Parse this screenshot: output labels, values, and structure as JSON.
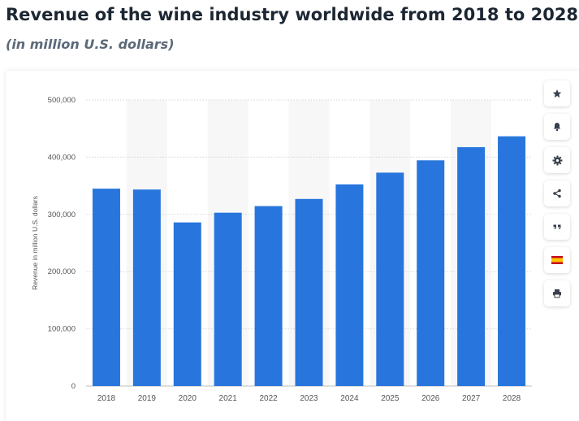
{
  "header": {
    "title": "Revenue of the wine industry worldwide from 2018 to 2028",
    "subtitle": "(in million U.S. dollars)"
  },
  "colors": {
    "bar": "#2876dd",
    "band": "#f7f7f7",
    "grid": "#d6d6d6",
    "axis_text": "#555555",
    "icon": "#38414d"
  },
  "toolbar": {
    "icons": [
      "star-icon",
      "bell-icon",
      "gear-icon",
      "share-icon",
      "quote-icon",
      "spain-flag-icon",
      "print-icon"
    ]
  },
  "chart_data": {
    "type": "bar",
    "title": "Revenue of the wine industry worldwide from 2018 to 2028",
    "subtitle": "(in million U.S. dollars)",
    "xlabel": "",
    "ylabel": "Revenue in million U.S. dollars",
    "categories": [
      "2018",
      "2019",
      "2020",
      "2021",
      "2022",
      "2023",
      "2024",
      "2025",
      "2026",
      "2027",
      "2028"
    ],
    "values": [
      345000,
      343500,
      286000,
      303000,
      314500,
      327000,
      352500,
      373000,
      394500,
      417500,
      436500
    ],
    "ylim": [
      0,
      500000
    ],
    "yticks": [
      0,
      100000,
      200000,
      300000,
      400000,
      500000
    ],
    "ytick_labels": [
      "0",
      "100,000",
      "200,000",
      "300,000",
      "400,000",
      "500,000"
    ],
    "grid": true,
    "legend": "none"
  }
}
